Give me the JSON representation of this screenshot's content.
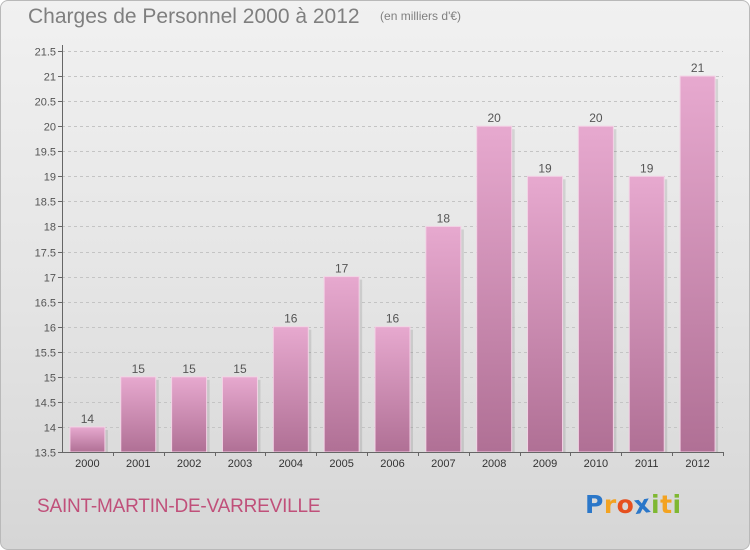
{
  "chart_data": {
    "type": "bar",
    "title": "Charges de Personnel 2000 à 2012",
    "unit_label": "(en milliers d'€)",
    "categories": [
      "2000",
      "2001",
      "2002",
      "2003",
      "2004",
      "2005",
      "2006",
      "2007",
      "2008",
      "2009",
      "2010",
      "2011",
      "2012"
    ],
    "values": [
      14,
      15,
      15,
      15,
      16,
      17,
      16,
      18,
      20,
      19,
      20,
      19,
      21
    ],
    "ylim": [
      13.5,
      21.5
    ],
    "yticks": [
      13.5,
      14,
      14.5,
      15,
      15.5,
      16,
      16.5,
      17,
      17.5,
      18,
      18.5,
      19,
      19.5,
      20,
      20.5,
      21,
      21.5
    ],
    "xlabel": "",
    "ylabel": "",
    "grid": true,
    "bar_color_top": "#e7a9cf",
    "bar_color_bottom": "#b07095"
  },
  "footer": {
    "place_name": "SAINT-MARTIN-DE-VARREVILLE",
    "logo_letters": [
      "P",
      "r",
      "o",
      "x",
      "i",
      "t",
      "i"
    ],
    "logo_colors": [
      "#2b77c9",
      "#f3a321",
      "#e6501f",
      "#2b77c9",
      "#7fb832",
      "#f3a321",
      "#7fb832"
    ]
  }
}
